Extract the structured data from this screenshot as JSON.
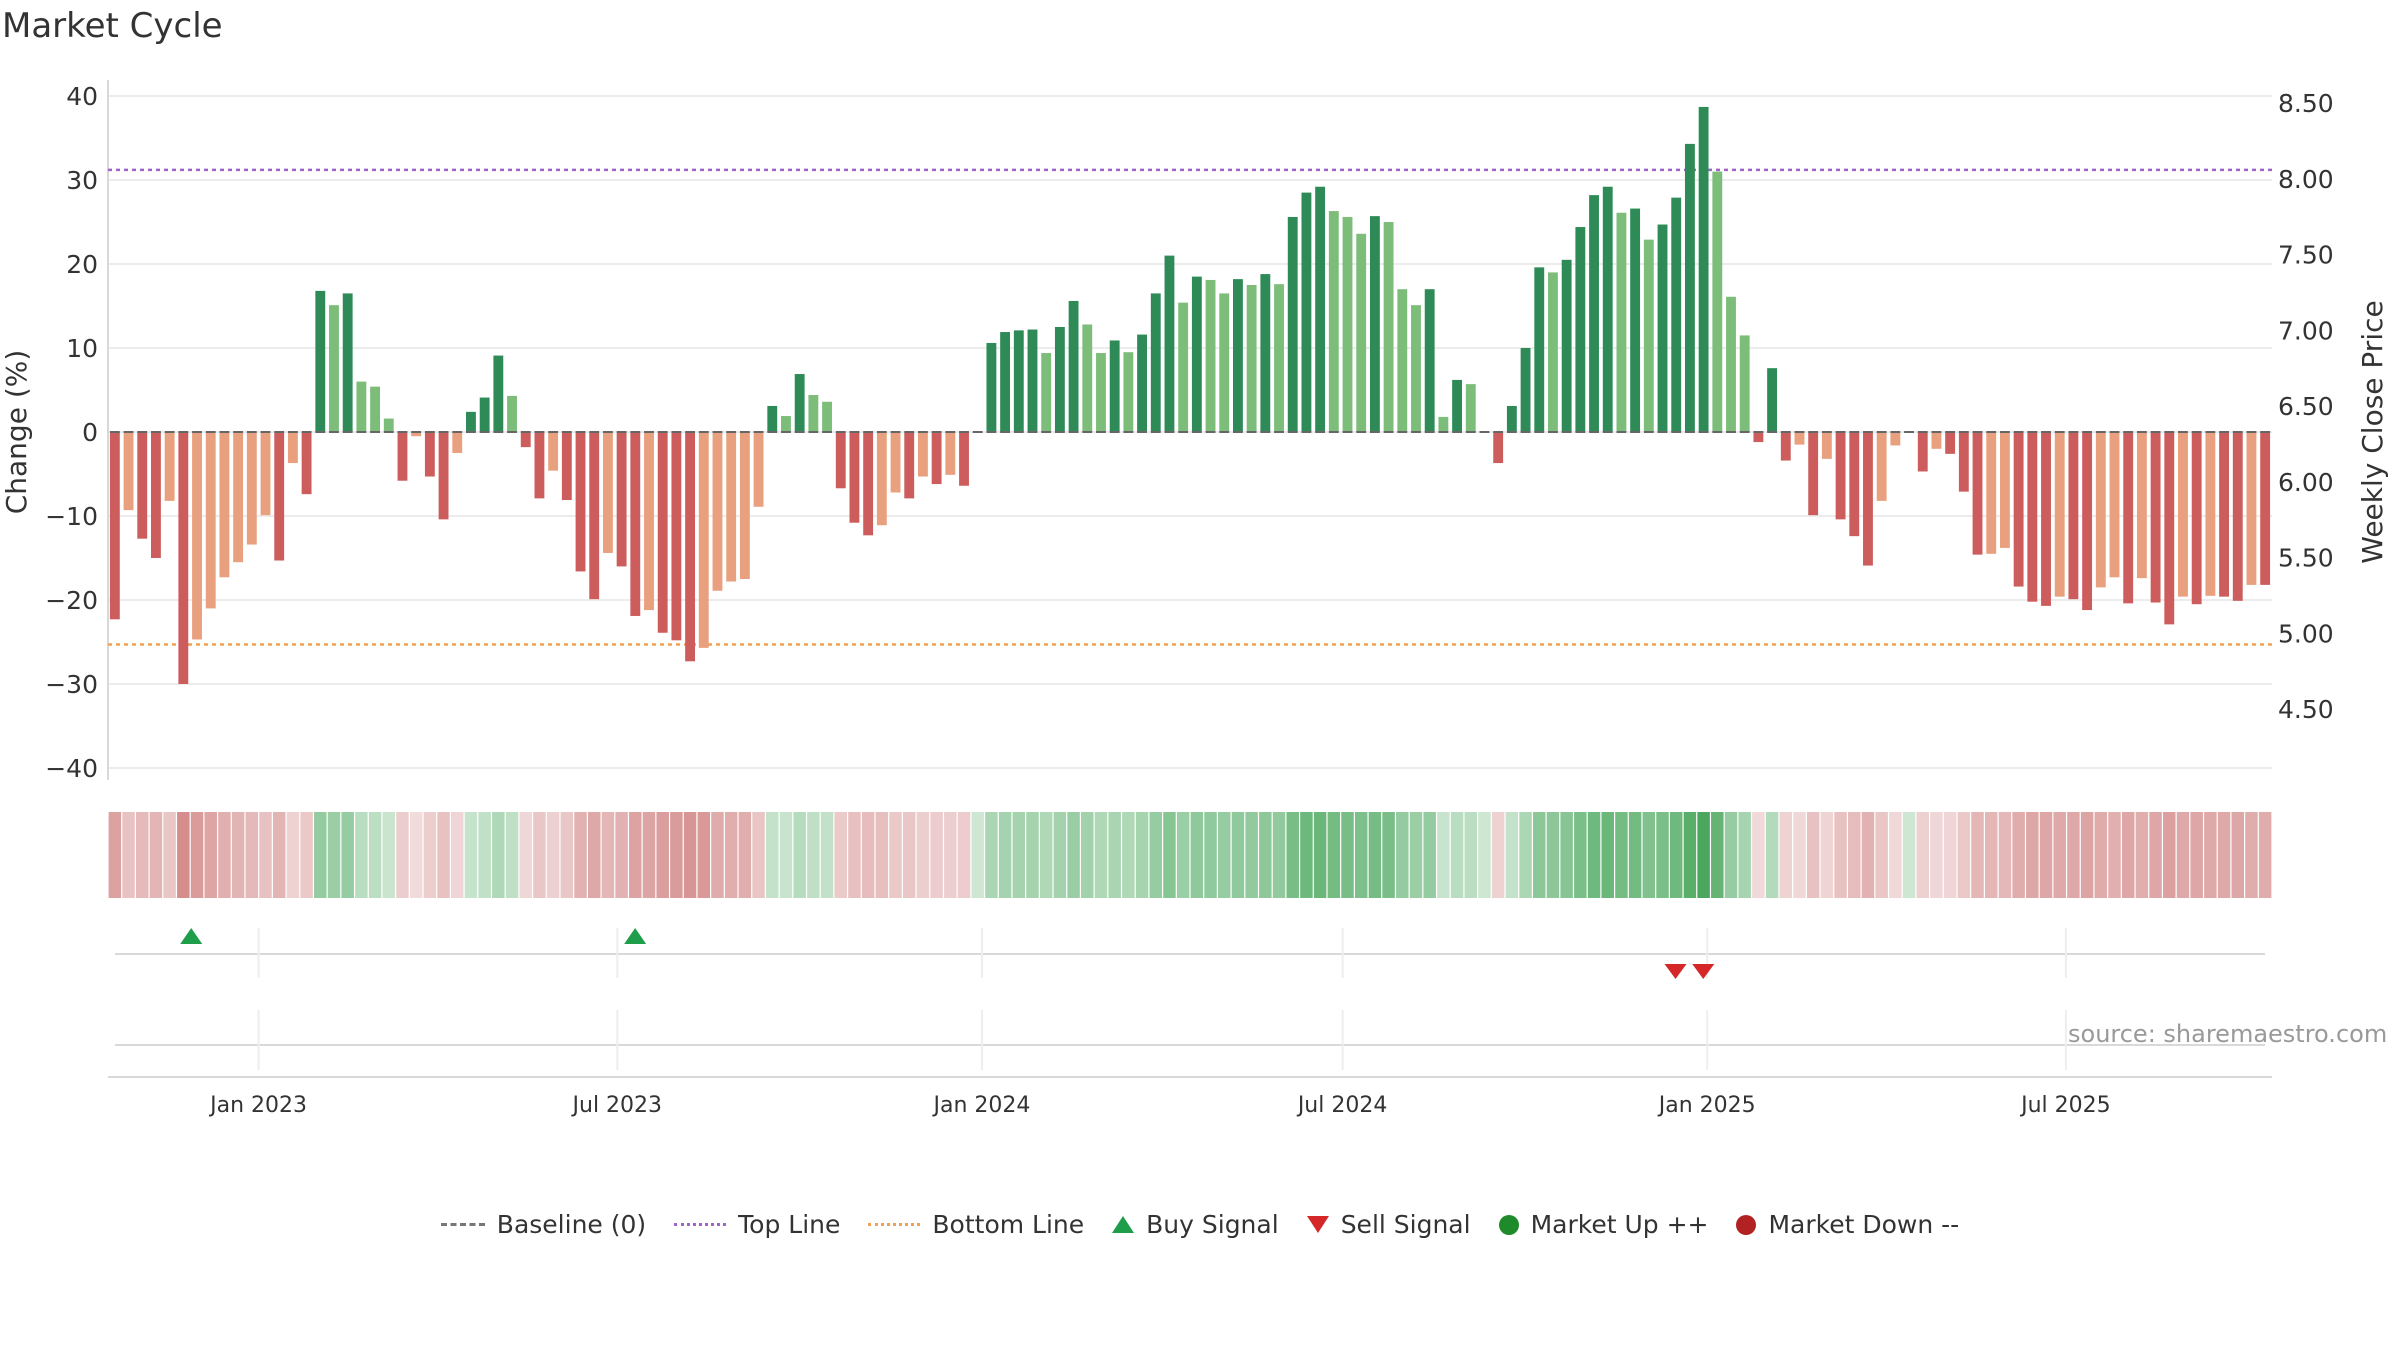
{
  "chart_data": {
    "type": "bar",
    "title": "Market Cycle",
    "ylabel": "Change (%)",
    "y2label": "Weekly Close Price",
    "ylim": [
      -42,
      42
    ],
    "y_ticks": [
      40,
      30,
      20,
      10,
      0,
      -10,
      -20,
      -30,
      -40
    ],
    "y_tick_labels": [
      "40",
      "30",
      "20",
      "10",
      "0",
      "−10",
      "−20",
      "−30",
      "−40"
    ],
    "y2lim": [
      4.1,
      8.6
    ],
    "y2_ticks": [
      8.5,
      8.0,
      7.5,
      7.0,
      6.5,
      6.0,
      5.5,
      5.0,
      4.5
    ],
    "y2_tick_labels": [
      "8.50",
      "8.00",
      "7.50",
      "7.00",
      "6.50",
      "6.00",
      "5.50",
      "5.00",
      "4.50"
    ],
    "x_start": "2022-10-17",
    "x_end": "2025-10-13",
    "x_tick_dates": [
      "2023-01-01",
      "2023-07-01",
      "2024-01-01",
      "2024-07-01",
      "2025-01-01",
      "2025-07-01"
    ],
    "x_tick_labels": [
      "Jan 2023",
      "Jul 2023",
      "Jan 2024",
      "Jul 2024",
      "Jan 2025",
      "Jul 2025"
    ],
    "grid": true,
    "top_line": 31.2,
    "bottom_line": -25.3,
    "values": [
      -22.3,
      -9.3,
      -12.7,
      -15.0,
      -8.2,
      -30.0,
      -24.7,
      -21.0,
      -17.3,
      -15.5,
      -13.4,
      -9.9,
      -15.3,
      -3.7,
      -7.4,
      16.8,
      15.1,
      16.5,
      6.0,
      5.4,
      1.6,
      -5.8,
      -0.5,
      -5.3,
      -10.4,
      -2.5,
      2.4,
      4.1,
      9.1,
      4.3,
      -1.8,
      -7.9,
      -4.6,
      -8.1,
      -16.6,
      -19.9,
      -14.4,
      -16.0,
      -21.9,
      -21.2,
      -23.9,
      -24.8,
      -27.3,
      -25.7,
      -18.9,
      -17.8,
      -17.5,
      -8.9,
      3.1,
      1.9,
      6.9,
      4.4,
      3.6,
      -6.7,
      -10.8,
      -12.3,
      -11.1,
      -7.2,
      -7.9,
      -5.3,
      -6.2,
      -5.1,
      -6.4,
      0,
      10.6,
      11.9,
      12.1,
      12.2,
      9.4,
      12.5,
      15.6,
      12.8,
      9.4,
      10.9,
      9.5,
      11.6,
      16.5,
      21.0,
      15.4,
      18.5,
      18.1,
      16.5,
      18.2,
      17.5,
      18.8,
      17.6,
      25.6,
      28.5,
      29.2,
      26.3,
      25.6,
      23.6,
      25.7,
      25.0,
      17.0,
      15.1,
      17.0,
      1.8,
      6.2,
      5.7,
      0,
      -3.7,
      3.1,
      10.0,
      19.6,
      19.0,
      20.5,
      24.4,
      28.2,
      29.2,
      26.1,
      26.6,
      22.9,
      24.7,
      27.9,
      34.3,
      38.7,
      31.0,
      16.1,
      11.5,
      -1.2,
      7.6,
      -3.4,
      -1.5,
      -9.9,
      -3.2,
      -10.4,
      -12.4,
      -15.9,
      -8.2,
      -1.6,
      0,
      -4.7,
      -2.0,
      -2.6,
      -7.1,
      -14.6,
      -14.5,
      -13.8,
      -18.4,
      -20.2,
      -20.7,
      -19.6,
      -19.9,
      -21.2,
      -18.5,
      -17.3,
      -20.4,
      -17.4,
      -20.3,
      -22.9,
      -19.6,
      -20.5,
      -19.5,
      -19.6,
      -20.1,
      -18.2,
      -18.2
    ],
    "series": [
      {
        "name": "Baseline (0)",
        "color": "#777777"
      },
      {
        "name": "Top Line",
        "color": "#a064c8"
      },
      {
        "name": "Bottom Line",
        "color": "#f0a050"
      },
      {
        "name": "Buy Signal",
        "color": "#1e9e4a",
        "dates": [
          "2022-11-28",
          "2023-07-10"
        ]
      },
      {
        "name": "Sell Signal",
        "color": "#d62728",
        "dates": [
          "2024-12-16",
          "2024-12-30"
        ]
      },
      {
        "name": "Market Up ++",
        "color": "#1f8a2a"
      },
      {
        "name": "Market Down --",
        "color": "#b22222"
      }
    ],
    "legend_position": "bottom-center",
    "source": "source: sharemaestro.com"
  },
  "colors": {
    "positive_dark": "#2e8b57",
    "positive_light": "#7dbd7a",
    "negative_dark": "#cd5c5c",
    "negative_light": "#e9a07e",
    "grid": "#e5e5e5"
  }
}
